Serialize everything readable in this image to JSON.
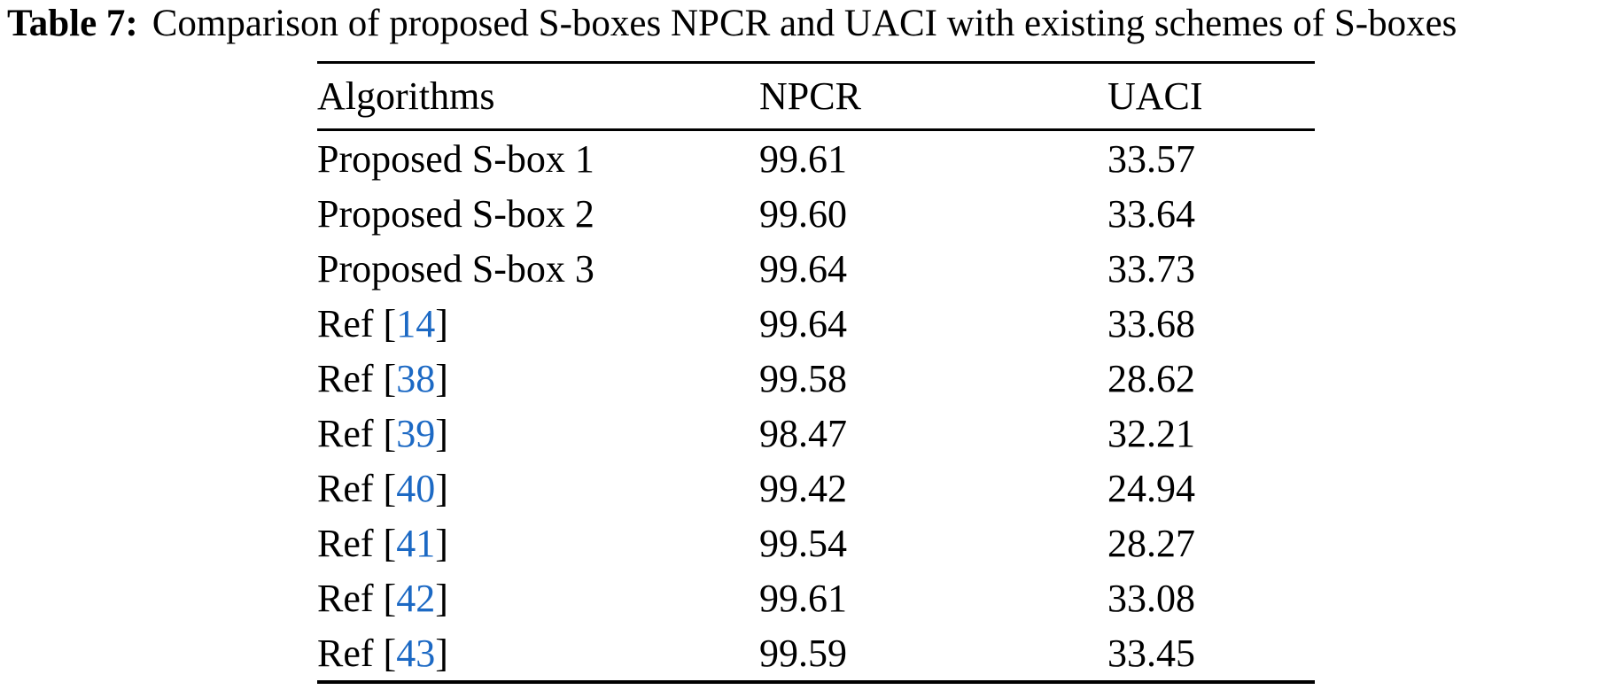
{
  "title": {
    "label": "Table 7:",
    "caption": "Comparison of proposed S-boxes NPCR and UACI with existing schemes of S-boxes"
  },
  "table": {
    "columns": [
      "Algorithms",
      "NPCR",
      "UACI"
    ],
    "citation_color": "#1c69c4",
    "rows": [
      {
        "algorithm": "Proposed S-box 1",
        "citation": null,
        "npcr": "99.61",
        "uaci": "33.57"
      },
      {
        "algorithm": "Proposed S-box 2",
        "citation": null,
        "npcr": "99.60",
        "uaci": "33.64"
      },
      {
        "algorithm": "Proposed S-box 3",
        "citation": null,
        "npcr": "99.64",
        "uaci": "33.73"
      },
      {
        "algorithm": "Ref [14]",
        "citation": "14",
        "npcr": "99.64",
        "uaci": "33.68"
      },
      {
        "algorithm": "Ref [38]",
        "citation": "38",
        "npcr": "99.58",
        "uaci": "28.62"
      },
      {
        "algorithm": "Ref [39]",
        "citation": "39",
        "npcr": "98.47",
        "uaci": "32.21"
      },
      {
        "algorithm": "Ref [40]",
        "citation": "40",
        "npcr": "99.42",
        "uaci": "24.94"
      },
      {
        "algorithm": "Ref [41]",
        "citation": "41",
        "npcr": "99.54",
        "uaci": "28.27"
      },
      {
        "algorithm": "Ref [42]",
        "citation": "42",
        "npcr": "99.61",
        "uaci": "33.08"
      },
      {
        "algorithm": "Ref [43]",
        "citation": "43",
        "npcr": "99.59",
        "uaci": "33.45"
      }
    ]
  }
}
